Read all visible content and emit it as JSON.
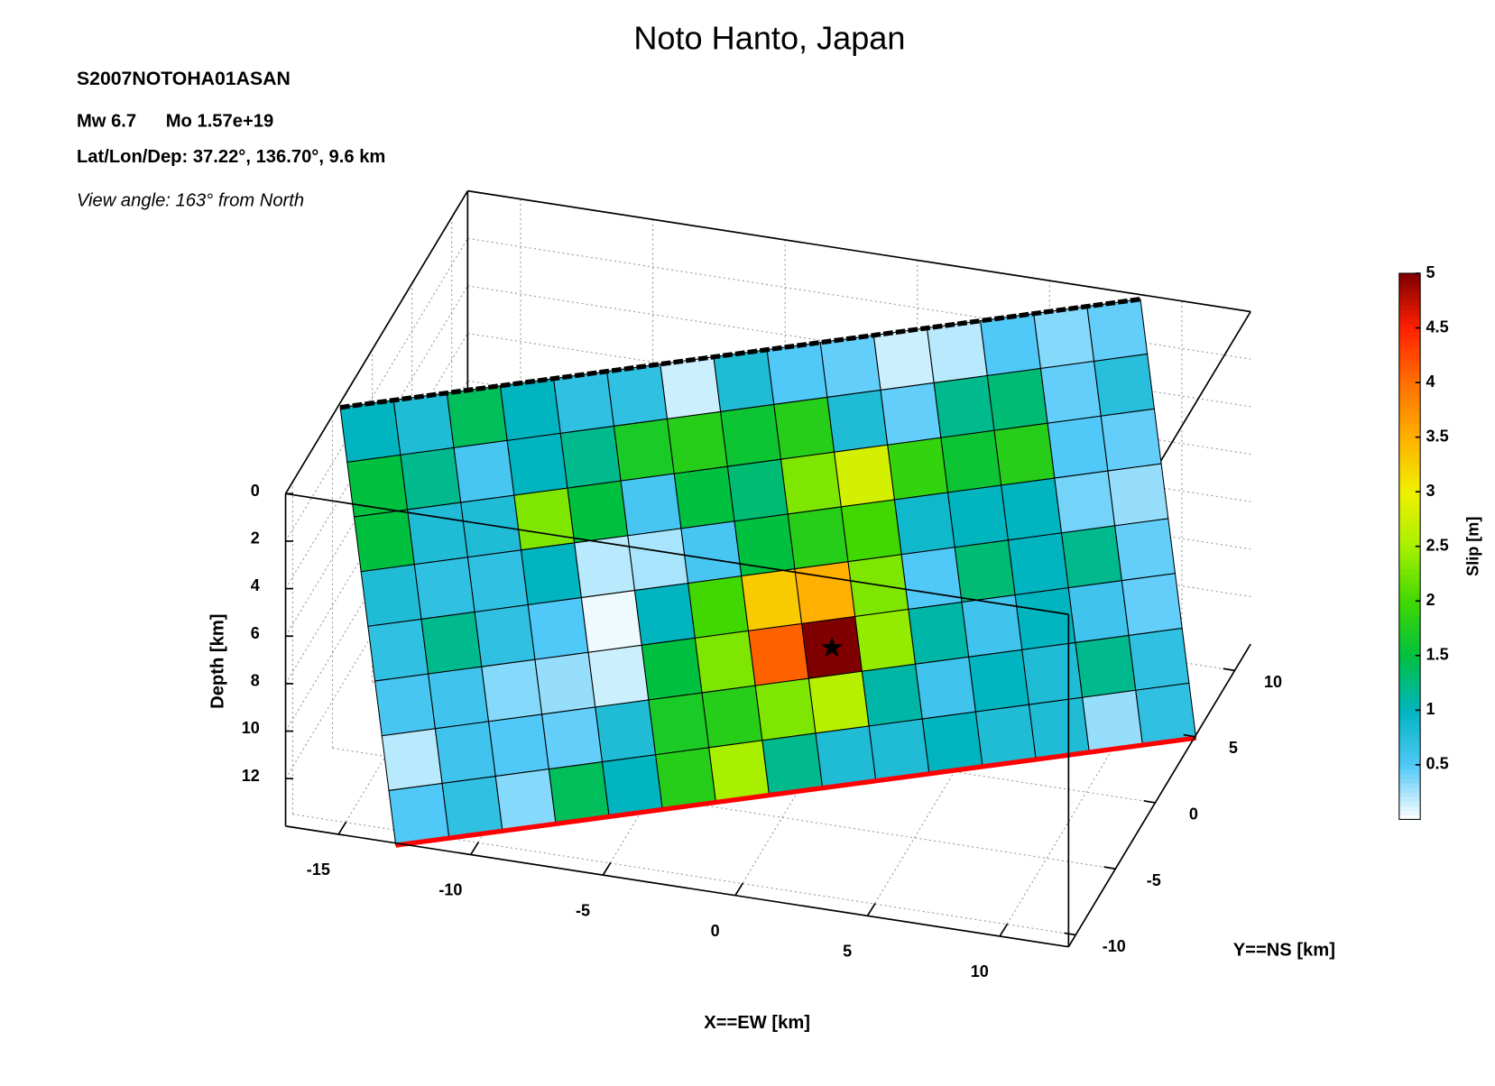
{
  "chart_data": {
    "type": "fault-slip-3d",
    "title": "Noto Hanto, Japan",
    "event_id": "S2007NOTOHA01ASAN",
    "magnitude": "Mw 6.7",
    "moment": "Mo 1.57e+19",
    "location": "Lat/Lon/Dep: 37.22°, 136.70°, 9.6 km",
    "view_angle": "View angle: 163° from North",
    "xlabel": "X==EW [km]",
    "ylabel": "Y==NS [km]",
    "zlabel": "Depth [km]",
    "colorbar_label": "Slip [m]",
    "xlim": [
      -17,
      12.6
    ],
    "xticks": [
      -15,
      -10,
      -5,
      0,
      5,
      10
    ],
    "ylim": [
      -10.9,
      12
    ],
    "yticks": [
      -10,
      -5,
      0,
      5,
      10
    ],
    "zlim": [
      0,
      14
    ],
    "zticks": [
      0,
      2,
      4,
      6,
      8,
      10,
      12
    ],
    "clim": [
      0,
      5
    ],
    "cticks": [
      0.5,
      1,
      1.5,
      2,
      2.5,
      3,
      3.5,
      4,
      4.5,
      5
    ],
    "colormap": [
      "#ffffff",
      "#50c8f8",
      "#00b4c0",
      "#00c040",
      "#40d800",
      "#a8f000",
      "#f0f000",
      "#ffb000",
      "#ff7000",
      "#ff2000",
      "#800000"
    ],
    "grid": true,
    "slip": [
      [
        1.0,
        0.8,
        1.4,
        1.0,
        0.7,
        0.7,
        0.15,
        0.8,
        0.5,
        0.45,
        0.15,
        0.2,
        0.5,
        0.35,
        0.45
      ],
      [
        1.5,
        1.2,
        0.55,
        1.0,
        1.2,
        1.7,
        1.8,
        1.6,
        1.8,
        0.8,
        0.45,
        1.2,
        1.3,
        0.45,
        0.75
      ],
      [
        1.5,
        0.8,
        0.8,
        2.3,
        1.5,
        0.55,
        1.5,
        1.3,
        2.3,
        2.8,
        1.9,
        1.6,
        1.8,
        0.5,
        0.45
      ],
      [
        0.8,
        0.7,
        0.7,
        1.0,
        0.2,
        0.25,
        0.55,
        1.5,
        1.8,
        2.0,
        0.9,
        1.0,
        1.0,
        0.4,
        0.3
      ],
      [
        0.7,
        1.2,
        0.7,
        0.5,
        0.05,
        1.0,
        2.0,
        3.3,
        3.5,
        2.3,
        0.5,
        1.3,
        1.0,
        1.2,
        0.45
      ],
      [
        0.55,
        0.6,
        0.35,
        0.3,
        0.15,
        1.5,
        2.3,
        4.1,
        5.0,
        2.4,
        1.1,
        0.6,
        1.0,
        0.6,
        0.45
      ],
      [
        0.2,
        0.6,
        0.5,
        0.45,
        0.8,
        1.7,
        1.8,
        2.3,
        2.6,
        1.1,
        0.6,
        1.0,
        0.8,
        1.2,
        0.7
      ],
      [
        0.5,
        0.7,
        0.35,
        1.4,
        1.0,
        1.8,
        2.5,
        1.2,
        0.8,
        0.8,
        1.0,
        0.8,
        0.8,
        0.3,
        0.7
      ]
    ]
  }
}
